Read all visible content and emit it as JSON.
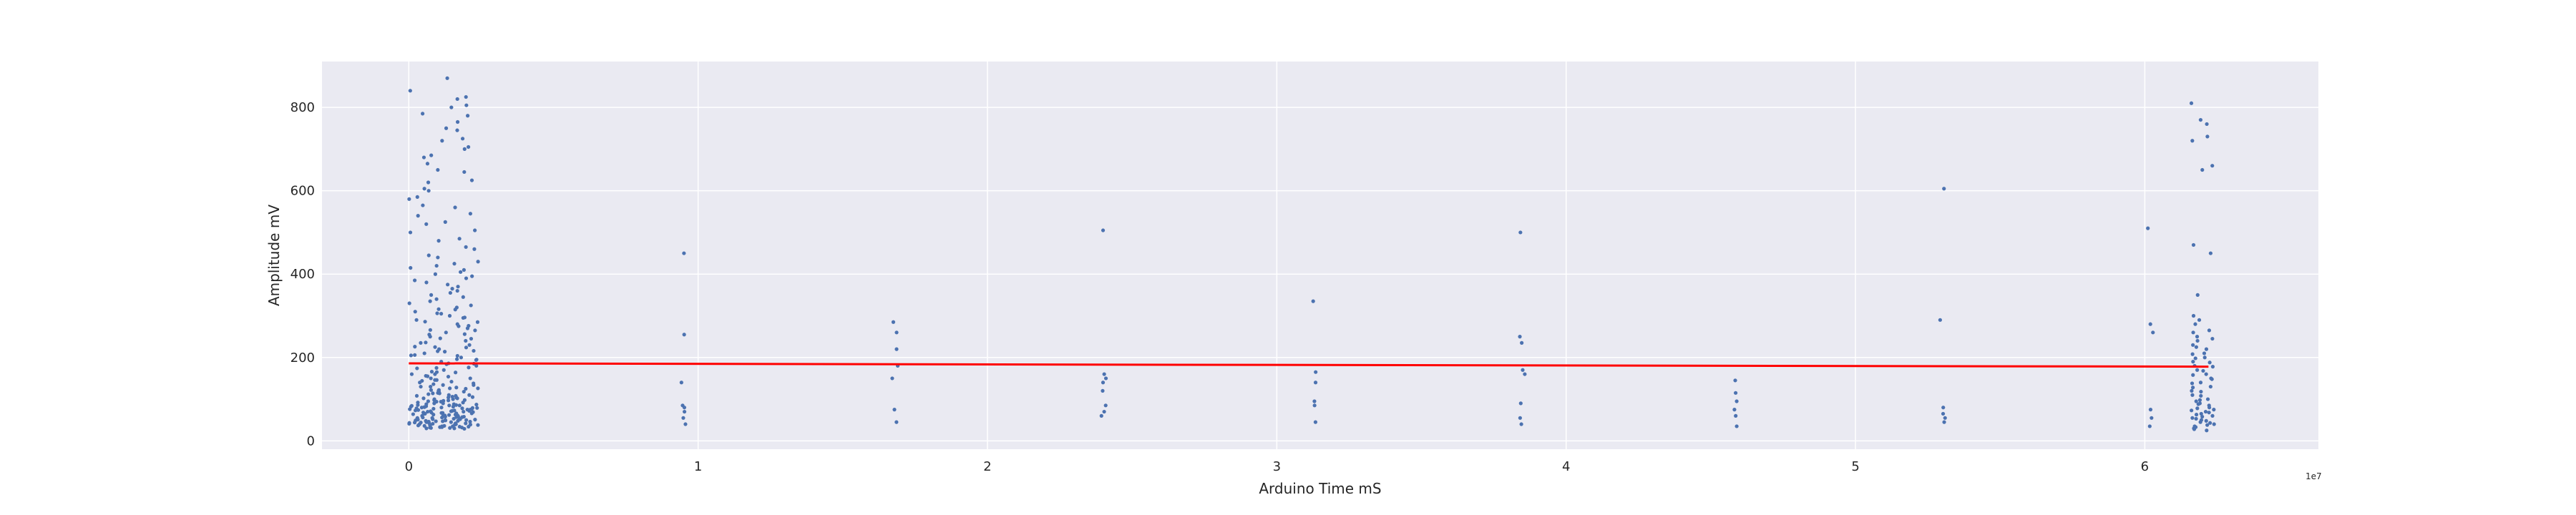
{
  "chart_data": {
    "type": "scatter",
    "title": "",
    "xlabel": "Arduino Time mS",
    "ylabel": "Amplitude mV",
    "x_offset_label": "1e7",
    "xlim": [
      -0.3,
      6.6
    ],
    "ylim": [
      -20,
      910
    ],
    "x_ticks": [
      0,
      1,
      2,
      3,
      4,
      5,
      6
    ],
    "y_ticks": [
      0,
      200,
      400,
      600,
      800
    ],
    "grid": true,
    "background_color": "#eaeaf2",
    "grid_color": "#ffffff",
    "point_color": "#4c72b0",
    "trend_color": "#ff0000",
    "trend_line": {
      "x": [
        0,
        6.22
      ],
      "y": [
        186,
        178
      ]
    },
    "clusters": [
      {
        "x_range": [
          0.0,
          0.24
        ],
        "y": [
          30,
          32,
          35,
          38,
          40,
          42,
          44,
          46,
          48,
          50,
          52,
          55,
          58,
          60,
          62,
          65,
          68,
          70,
          72,
          75,
          78,
          80,
          85,
          90,
          95,
          100,
          105,
          110,
          115,
          120,
          125,
          130,
          140,
          150,
          160,
          170,
          180,
          190,
          200,
          210,
          220,
          230,
          240,
          250,
          260,
          270,
          280,
          290,
          300,
          310,
          320,
          340,
          360,
          380,
          400,
          420,
          440,
          460,
          480,
          500,
          520,
          540,
          560,
          580,
          600,
          620,
          650,
          680,
          700,
          720,
          750,
          780,
          800,
          820,
          840,
          870,
          33,
          36,
          39,
          43,
          47,
          51,
          56,
          61,
          66,
          71,
          76,
          82,
          88,
          94,
          98,
          104,
          112,
          118,
          126,
          134,
          144,
          154,
          164,
          176,
          186,
          196,
          206,
          216,
          226,
          236,
          246,
          256,
          266,
          276,
          286,
          296,
          306,
          316,
          330,
          350,
          370,
          390,
          410,
          430,
          31,
          34,
          37,
          41,
          45,
          49,
          53,
          57,
          63,
          67,
          73,
          79,
          86,
          92,
          97,
          102,
          108,
          114,
          122,
          128,
          136,
          146,
          156,
          166,
          174,
          184,
          194,
          204,
          214,
          224,
          29,
          31,
          33,
          35,
          37,
          39,
          41,
          43,
          45,
          47,
          49,
          51,
          53,
          55,
          57,
          59,
          61,
          63,
          65,
          67,
          69,
          71,
          73,
          75,
          77,
          79,
          81,
          83,
          85,
          87,
          30,
          34,
          38,
          42,
          46,
          50,
          54,
          58,
          62,
          66,
          70,
          74,
          78,
          82,
          86,
          90,
          94,
          98,
          102,
          106,
          110,
          114,
          118,
          122,
          126,
          130,
          134,
          138,
          142,
          146,
          150,
          155,
          160,
          165,
          175,
          185,
          195,
          205,
          215,
          225,
          235,
          245,
          255,
          265,
          275,
          285,
          295,
          305,
          315,
          325,
          335,
          345,
          355,
          365,
          375,
          385,
          395,
          405,
          415,
          425,
          445,
          465,
          485,
          505,
          525,
          545,
          565,
          585,
          605,
          625,
          645,
          665,
          685,
          705,
          725,
          745,
          765,
          785,
          805,
          825,
          32,
          36,
          40,
          44,
          48,
          52,
          56,
          60,
          64,
          68,
          72,
          76,
          80,
          84,
          88,
          92,
          96,
          100,
          104,
          108
        ]
      },
      {
        "x_range": [
          0.94,
          0.96
        ],
        "y": [
          40,
          55,
          70,
          80,
          85,
          140,
          255,
          450
        ]
      },
      {
        "x_range": [
          1.67,
          1.69
        ],
        "y": [
          45,
          75,
          150,
          180,
          220,
          260,
          285
        ]
      },
      {
        "x_range": [
          2.39,
          2.41
        ],
        "y": [
          60,
          70,
          85,
          120,
          140,
          150,
          160,
          505
        ]
      },
      {
        "x_range": [
          3.12,
          3.14
        ],
        "y": [
          45,
          85,
          95,
          140,
          165,
          335
        ]
      },
      {
        "x_range": [
          3.84,
          3.86
        ],
        "y": [
          40,
          55,
          90,
          160,
          170,
          235,
          250,
          500
        ]
      },
      {
        "x_range": [
          4.57,
          4.59
        ],
        "y": [
          35,
          60,
          75,
          95,
          115,
          145
        ]
      },
      {
        "x_range": [
          5.29,
          5.31
        ],
        "y": [
          45,
          55,
          65,
          80,
          290,
          605
        ]
      },
      {
        "x_range": [
          6.01,
          6.03
        ],
        "y": [
          35,
          55,
          75,
          260,
          280,
          510
        ]
      },
      {
        "x_range": [
          6.16,
          6.24
        ],
        "y": [
          25,
          30,
          35,
          40,
          45,
          50,
          55,
          60,
          65,
          70,
          75,
          80,
          85,
          90,
          95,
          100,
          110,
          120,
          130,
          140,
          150,
          160,
          170,
          180,
          190,
          200,
          210,
          220,
          230,
          240,
          250,
          260,
          280,
          300,
          350,
          450,
          470,
          650,
          660,
          720,
          730,
          760,
          770,
          810,
          28,
          33,
          38,
          43,
          48,
          53,
          58,
          63,
          68,
          73,
          78,
          88,
          98,
          108,
          118,
          128,
          138,
          148,
          158,
          168,
          178,
          188,
          198,
          208,
          225,
          245,
          265,
          290
        ]
      }
    ]
  }
}
